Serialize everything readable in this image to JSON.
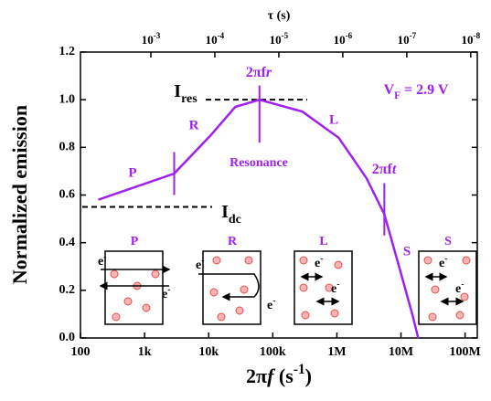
{
  "chart_data": {
    "type": "line",
    "x_label": "2πf (s-1)",
    "y_label": "Normalized emission",
    "x2_label": "τ (s)",
    "x_scale": "log",
    "x2_scale": "log",
    "color": "#a020f0",
    "x": [
      190,
      2900,
      10700,
      26000,
      62000,
      290000,
      1070000,
      2900000,
      5500000,
      9100000,
      15000000,
      18600000
    ],
    "values": [
      0.58,
      0.69,
      0.85,
      0.97,
      1.0,
      0.95,
      0.84,
      0.67,
      0.52,
      0.31,
      0.1,
      0.0
    ],
    "xlim": [
      100,
      155000000
    ],
    "xticks": [
      100,
      {
        "value": 1000,
        "label": "1k"
      },
      {
        "value": 10000,
        "label": "10k"
      },
      {
        "value": 100000,
        "label": "100k"
      },
      {
        "value": 1000000,
        "label": "1M"
      },
      {
        "value": 10000000,
        "label": "10M"
      },
      {
        "value": 100000000,
        "label": "100M"
      }
    ],
    "x2lim": [
      0.0126,
      7.9e-09
    ],
    "x2ticks": [
      {
        "value": 0.001,
        "label": "10-3"
      },
      {
        "value": 0.0001,
        "label": "10-4"
      },
      {
        "value": 1e-05,
        "label": "10-5"
      },
      {
        "value": 1e-06,
        "label": "10-6"
      },
      {
        "value": 1e-07,
        "label": "10-7"
      },
      {
        "value": 1e-08,
        "label": "10-8"
      }
    ],
    "ylim": [
      0,
      1.2
    ],
    "yticks": [
      {
        "value": 0,
        "label": "0.0"
      },
      0.2,
      0.4,
      0.6,
      0.8,
      {
        "value": 1,
        "label": "1.0"
      },
      1.2
    ],
    "hlines": [
      0.55,
      1.0
    ],
    "vlines": [
      2900,
      62000,
      5500000
    ],
    "annotations": [
      "P",
      "R",
      "Resonance",
      "L",
      "S",
      "2πfr",
      "2πft",
      "Ires",
      "Idc",
      "VF = 2.9 V"
    ],
    "insets": [
      {
        "label": "P",
        "electron_labels": [
          "e-",
          "e-"
        ]
      },
      {
        "label": "R",
        "electron_labels": [
          "e-",
          "e-"
        ]
      },
      {
        "label": "L",
        "electron_labels": [
          "e-",
          "e-"
        ]
      },
      {
        "label": "S",
        "electron_labels": [
          "e-",
          "e-"
        ]
      }
    ]
  }
}
